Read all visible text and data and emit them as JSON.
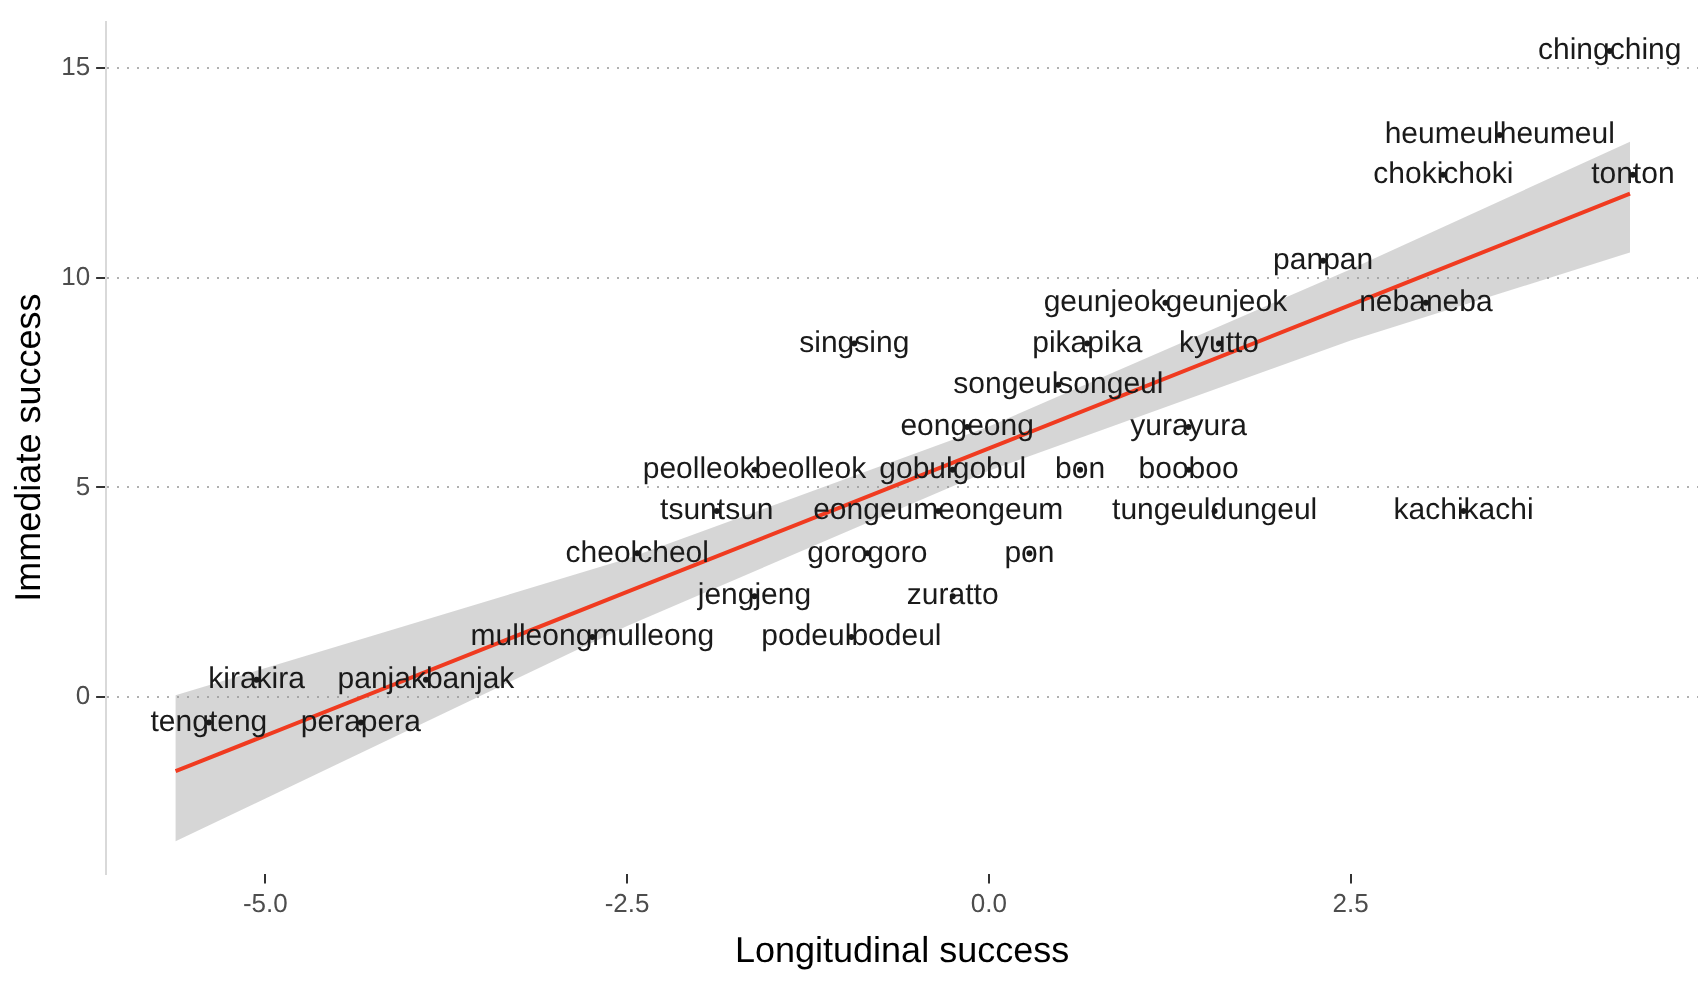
{
  "chart_data": {
    "type": "scatter",
    "xlabel": "Longitudinal success",
    "ylabel": "Immediate success",
    "xlim": [
      -6.1,
      4.9
    ],
    "ylim": [
      -4.2,
      16.1
    ],
    "xticks": [
      {
        "value": -5,
        "label": "-5.0"
      },
      {
        "value": -2.5,
        "label": "-2.5"
      },
      {
        "value": 0,
        "label": "0.0"
      },
      {
        "value": 2.5,
        "label": "2.5"
      }
    ],
    "yticks": [
      0,
      5,
      10,
      15
    ],
    "grid": "y",
    "legend": false,
    "series": [
      {
        "type": "scatter",
        "color": "#1a1a1a",
        "x": [
          4.29,
          3.53,
          3.14,
          4.45,
          2.31,
          1.22,
          3.02,
          -0.93,
          0.68,
          1.59,
          0.48,
          -0.15,
          1.38,
          -1.62,
          -0.25,
          0.63,
          1.38,
          -1.88,
          -0.35,
          1.56,
          3.28,
          -2.43,
          -0.84,
          0.28,
          -1.62,
          -0.25,
          -2.74,
          -0.95,
          -5.06,
          -3.89,
          -5.39,
          -4.34
        ],
        "values": [
          15.4,
          13.4,
          12.45,
          12.45,
          10.4,
          9.4,
          9.4,
          8.43,
          8.43,
          8.43,
          7.45,
          6.44,
          6.44,
          5.42,
          5.42,
          5.42,
          5.42,
          4.44,
          4.44,
          4.44,
          4.44,
          3.43,
          3.43,
          3.43,
          2.41,
          2.41,
          1.44,
          1.44,
          0.42,
          0.42,
          -0.6,
          -0.6
        ],
        "value_labels": [
          "chingching",
          "heumeulheumeul",
          "chokichoki",
          "tonton",
          "panpan",
          "geunjeokgeunjeok",
          "nebaneba",
          "singsing",
          "pikapika",
          "kyutto",
          "songeulsongeul",
          "eongeong",
          "yurayura",
          "peolleokbeolleok",
          "gobulgobul",
          "bon",
          "booboo",
          "tsuntsun",
          "eongeumeongeum",
          "tungeuldungeul",
          "kachikachi",
          "cheolcheol",
          "gorogoro",
          "pon",
          "jengjeng",
          "zuratto",
          "mulleongmulleong",
          "podeulbodeul",
          "kirakira",
          "panjakbanjak",
          "tengteng",
          "perapera"
        ]
      },
      {
        "type": "line",
        "color": "#f03b20",
        "marker": "none",
        "x": [
          -5.62,
          -2.5,
          0,
          2.5,
          4.43
        ],
        "values": [
          -1.76,
          2.51,
          5.93,
          9.35,
          12.0
        ],
        "lower": [
          -3.43,
          1.7,
          5.4,
          8.5,
          10.6
        ],
        "upper": [
          0.05,
          3.3,
          6.45,
          10.2,
          13.24
        ]
      }
    ]
  }
}
